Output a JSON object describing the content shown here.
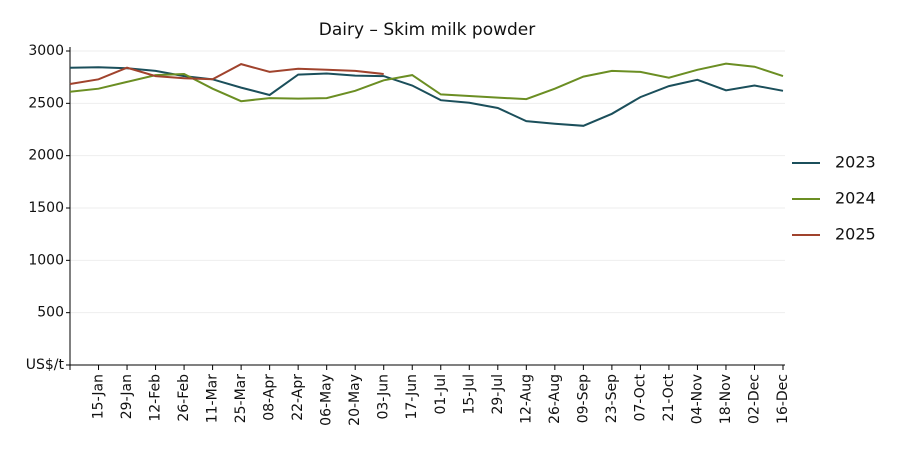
{
  "chart_data": {
    "type": "line",
    "title": "Dairy – Skim milk powder",
    "categories": [
      null,
      "15-Jan",
      "29-Jan",
      "12-Feb",
      "26-Feb",
      "11-Mar",
      "25-Mar",
      "08-Apr",
      "22-Apr",
      "06-May",
      "20-May",
      "03-Jun",
      "17-Jun",
      "01-Jul",
      "15-Jul",
      "29-Jul",
      "12-Aug",
      "26-Aug",
      "09-Sep",
      "23-Sep",
      "07-Oct",
      "21-Oct",
      "04-Nov",
      "18-Nov",
      "02-Dec",
      "16-Dec"
    ],
    "series": [
      {
        "name": "2023",
        "color": "#1b4f5b",
        "values": [
          2840,
          2845,
          2835,
          2810,
          2760,
          2730,
          2650,
          2580,
          2775,
          2785,
          2765,
          2760,
          2670,
          2530,
          2505,
          2455,
          2330,
          2305,
          2285,
          2400,
          2560,
          2665,
          2725,
          2625,
          2670,
          2620
        ]
      },
      {
        "name": "2024",
        "color": "#6b8e23",
        "values": [
          2610,
          2640,
          2705,
          2770,
          2780,
          2640,
          2520,
          2550,
          2545,
          2550,
          2620,
          2720,
          2770,
          2585,
          2570,
          2555,
          2540,
          2640,
          2755,
          2810,
          2800,
          2745,
          2820,
          2880,
          2850,
          2760
        ]
      },
      {
        "name": "2025",
        "color": "#a0432d",
        "values": [
          2685,
          2730,
          2840,
          2760,
          2740,
          2730,
          2875,
          2800,
          2830,
          2820,
          2810,
          2780,
          null,
          null,
          null,
          null,
          null,
          null,
          null,
          null,
          null,
          null,
          null,
          null,
          null,
          null
        ]
      }
    ],
    "ylim": [
      0,
      3000
    ],
    "yticks": [
      {
        "value": 0,
        "label": "US$/t"
      },
      500,
      1000,
      1500,
      2000,
      2500,
      3000
    ],
    "grid": true,
    "legend": "right"
  }
}
